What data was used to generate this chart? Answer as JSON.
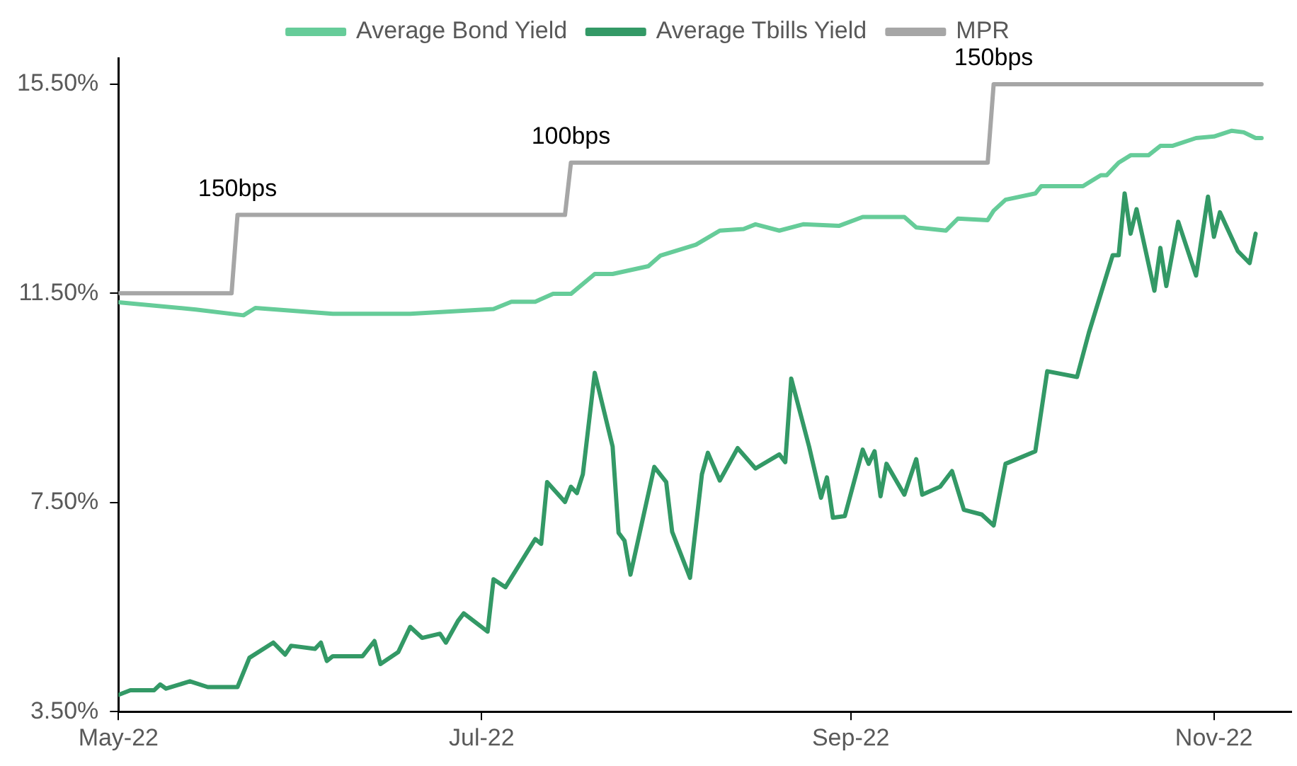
{
  "chart_data": {
    "type": "line",
    "ylim": [
      3.5,
      16.0
    ],
    "yticks": [
      {
        "value": 3.5,
        "label": "3.50%"
      },
      {
        "value": 7.5,
        "label": "7.50%"
      },
      {
        "value": 11.5,
        "label": "11.50%"
      },
      {
        "value": 15.5,
        "label": "15.50%"
      }
    ],
    "xlim": [
      "2022-05-01",
      "2022-11-14"
    ],
    "xticks": [
      {
        "value": "2022-05-01",
        "label": "May-22"
      },
      {
        "value": "2022-07-01",
        "label": "Jul-22"
      },
      {
        "value": "2022-09-01",
        "label": "Sep-22"
      },
      {
        "value": "2022-11-01",
        "label": "Nov-22"
      }
    ],
    "grid": false,
    "legend": "top",
    "series": [
      {
        "name": "Average Bond Yield",
        "color": "#66cc99",
        "x": [
          "2022-05-01",
          "2022-05-14",
          "2022-05-22",
          "2022-05-24",
          "2022-06-06",
          "2022-06-19",
          "2022-07-03",
          "2022-07-06",
          "2022-07-10",
          "2022-07-13",
          "2022-07-16",
          "2022-07-20",
          "2022-07-23",
          "2022-07-29",
          "2022-07-31",
          "2022-08-06",
          "2022-08-10",
          "2022-08-14",
          "2022-08-16",
          "2022-08-20",
          "2022-08-24",
          "2022-08-30",
          "2022-09-03",
          "2022-09-10",
          "2022-09-12",
          "2022-09-17",
          "2022-09-19",
          "2022-09-24",
          "2022-09-25",
          "2022-09-27",
          "2022-10-02",
          "2022-10-03",
          "2022-10-10",
          "2022-10-13",
          "2022-10-14",
          "2022-10-16",
          "2022-10-18",
          "2022-10-21",
          "2022-10-23",
          "2022-10-25",
          "2022-10-29",
          "2022-11-01",
          "2022-11-04",
          "2022-11-06",
          "2022-11-08",
          "2022-11-09"
        ],
        "values": [
          11.33,
          11.19,
          11.08,
          11.22,
          11.11,
          11.11,
          11.2,
          11.34,
          11.34,
          11.49,
          11.49,
          11.87,
          11.87,
          12.02,
          12.22,
          12.43,
          12.7,
          12.73,
          12.82,
          12.7,
          12.82,
          12.79,
          12.96,
          12.96,
          12.76,
          12.7,
          12.93,
          12.9,
          13.08,
          13.29,
          13.41,
          13.55,
          13.55,
          13.76,
          13.76,
          14.0,
          14.14,
          14.14,
          14.32,
          14.32,
          14.47,
          14.5,
          14.61,
          14.58,
          14.47,
          14.47
        ]
      },
      {
        "name": "Average Tbills Yield",
        "color": "#339966",
        "x": [
          "2022-05-01",
          "2022-05-03",
          "2022-05-07",
          "2022-05-08",
          "2022-05-09",
          "2022-05-13",
          "2022-05-16",
          "2022-05-21",
          "2022-05-23",
          "2022-05-27",
          "2022-05-29",
          "2022-05-30",
          "2022-06-03",
          "2022-06-04",
          "2022-06-05",
          "2022-06-06",
          "2022-06-11",
          "2022-06-13",
          "2022-06-14",
          "2022-06-17",
          "2022-06-19",
          "2022-06-21",
          "2022-06-24",
          "2022-06-25",
          "2022-06-27",
          "2022-06-28",
          "2022-07-02",
          "2022-07-03",
          "2022-07-05",
          "2022-07-10",
          "2022-07-11",
          "2022-07-12",
          "2022-07-15",
          "2022-07-16",
          "2022-07-17",
          "2022-07-18",
          "2022-07-20",
          "2022-07-23",
          "2022-07-24",
          "2022-07-25",
          "2022-07-26",
          "2022-07-30",
          "2022-08-01",
          "2022-08-02",
          "2022-08-05",
          "2022-08-07",
          "2022-08-08",
          "2022-08-10",
          "2022-08-13",
          "2022-08-16",
          "2022-08-20",
          "2022-08-21",
          "2022-08-22",
          "2022-08-25",
          "2022-08-27",
          "2022-08-28",
          "2022-08-29",
          "2022-08-31",
          "2022-09-03",
          "2022-09-04",
          "2022-09-05",
          "2022-09-06",
          "2022-09-07",
          "2022-09-10",
          "2022-09-12",
          "2022-09-13",
          "2022-09-16",
          "2022-09-18",
          "2022-09-20",
          "2022-09-23",
          "2022-09-25",
          "2022-09-27",
          "2022-10-02",
          "2022-10-04",
          "2022-10-09",
          "2022-10-11",
          "2022-10-15",
          "2022-10-16",
          "2022-10-17",
          "2022-10-18",
          "2022-10-19",
          "2022-10-22",
          "2022-10-23",
          "2022-10-24",
          "2022-10-26",
          "2022-10-29",
          "2022-10-31",
          "2022-11-01",
          "2022-11-02",
          "2022-11-05",
          "2022-11-07",
          "2022-11-08"
        ],
        "values": [
          3.82,
          3.91,
          3.91,
          4.02,
          3.94,
          4.08,
          3.97,
          3.97,
          4.53,
          4.82,
          4.59,
          4.76,
          4.7,
          4.82,
          4.47,
          4.56,
          4.56,
          4.85,
          4.41,
          4.64,
          5.12,
          4.91,
          4.99,
          4.82,
          5.23,
          5.38,
          5.03,
          6.03,
          5.88,
          6.8,
          6.71,
          7.89,
          7.51,
          7.8,
          7.68,
          8.04,
          9.98,
          8.57,
          6.92,
          6.77,
          6.12,
          8.18,
          7.89,
          6.94,
          6.06,
          8.04,
          8.45,
          7.92,
          8.54,
          8.15,
          8.42,
          8.27,
          9.87,
          8.57,
          7.59,
          7.98,
          7.21,
          7.24,
          8.51,
          8.24,
          8.48,
          7.62,
          8.24,
          7.65,
          8.33,
          7.65,
          7.8,
          8.1,
          7.36,
          7.27,
          7.06,
          8.24,
          8.48,
          10.01,
          9.9,
          10.75,
          12.23,
          12.23,
          13.41,
          12.64,
          13.11,
          11.55,
          12.37,
          11.64,
          12.87,
          11.84,
          13.35,
          12.58,
          13.05,
          12.31,
          12.08,
          12.64
        ]
      },
      {
        "name": "MPR",
        "color": "#a6a6a6",
        "x": [
          "2022-05-01",
          "2022-05-20",
          "2022-05-21",
          "2022-07-15",
          "2022-07-16",
          "2022-09-24",
          "2022-09-25",
          "2022-11-09"
        ],
        "values": [
          11.5,
          11.5,
          13,
          13,
          14,
          14,
          15.5,
          15.5
        ]
      }
    ],
    "annotations": [
      {
        "text": "150bps",
        "x": "2022-05-21",
        "y": 13
      },
      {
        "text": "100bps",
        "x": "2022-07-16",
        "y": 14
      },
      {
        "text": "150bps",
        "x": "2022-09-25",
        "y": 15.5
      }
    ]
  }
}
